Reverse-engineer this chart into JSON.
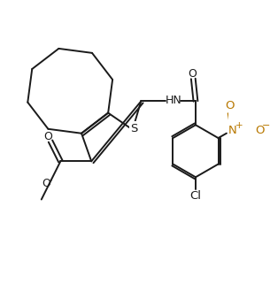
{
  "background_color": "#ffffff",
  "bond_color": "#1a1a1a",
  "atom_color": "#1a1a1a",
  "NO_color": "#b87800",
  "figsize": [
    3.05,
    3.29
  ],
  "dpi": 100,
  "xlim": [
    0,
    9.5
  ],
  "ylim": [
    0,
    10.2
  ]
}
